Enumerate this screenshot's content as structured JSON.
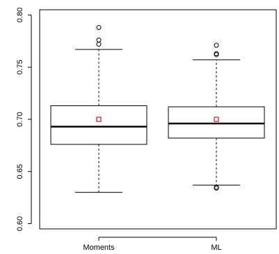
{
  "chart_data": {
    "type": "box",
    "title": "",
    "xlabel": "",
    "ylabel": "",
    "ylim": [
      0.595,
      0.805
    ],
    "yticks": [
      "0.60",
      "0.65",
      "0.70",
      "0.75",
      "0.80"
    ],
    "categories": [
      "Moments",
      "ML"
    ],
    "boxes": [
      {
        "name": "Moments",
        "whisker_low": 0.63,
        "q1": 0.676,
        "median": 0.693,
        "q3": 0.713,
        "whisker_high": 0.767,
        "mean": 0.7,
        "outliers": [
          0.772,
          0.776,
          0.788
        ]
      },
      {
        "name": "ML",
        "whisker_low": 0.637,
        "q1": 0.682,
        "median": 0.696,
        "q3": 0.712,
        "whisker_high": 0.757,
        "mean": 0.7,
        "outliers": [
          0.634,
          0.635,
          0.762,
          0.763,
          0.771
        ]
      }
    ],
    "mean_marker_color": "#cc0000",
    "grid": false,
    "legend": "none"
  }
}
